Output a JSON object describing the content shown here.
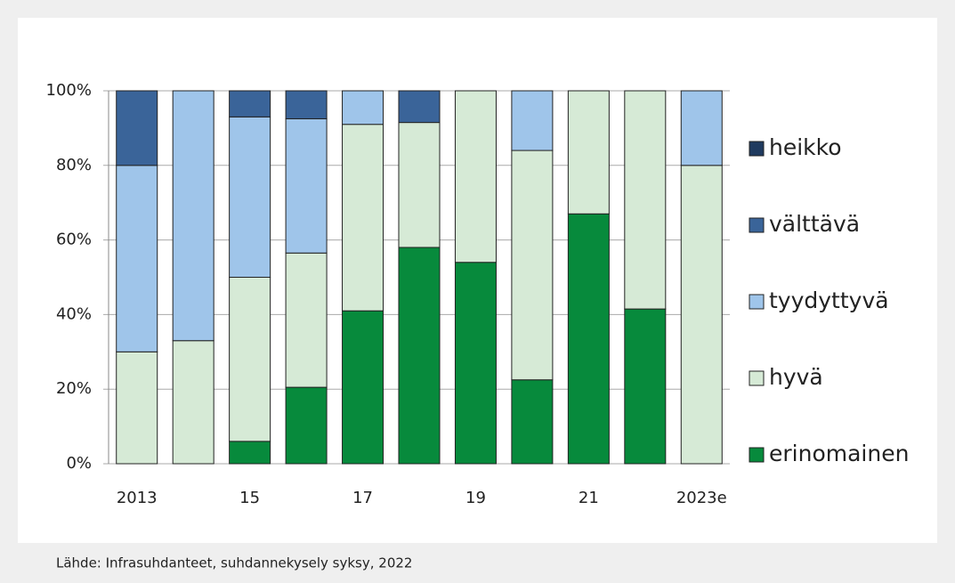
{
  "chart_data": {
    "type": "stacked_bar",
    "categories": [
      "2013",
      null,
      "15",
      null,
      "17",
      null,
      "19",
      null,
      "21",
      null,
      "2023e"
    ],
    "series": [
      {
        "name": "erinomainen",
        "color": "#078a3c",
        "values": [
          0,
          0,
          6,
          20.5,
          41,
          58,
          54,
          22.5,
          67,
          41.5,
          0
        ]
      },
      {
        "name": "hyvä",
        "color": "#d6ead6",
        "values": [
          30,
          33,
          44,
          36,
          50,
          33.5,
          46,
          61.5,
          33,
          58.5,
          80
        ]
      },
      {
        "name": "tyydyttyvä",
        "color": "#9fc5ea",
        "values": [
          50,
          67,
          43,
          36,
          9,
          0,
          0,
          16,
          0,
          0,
          20
        ]
      },
      {
        "name": "välttävä",
        "color": "#3a6499",
        "values": [
          20,
          0,
          7,
          7.5,
          0,
          8.5,
          0,
          0,
          0,
          0,
          0
        ]
      },
      {
        "name": "heikko",
        "color": "#1f3a5f",
        "values": [
          0,
          0,
          0,
          0,
          0,
          0,
          0,
          0,
          0,
          0,
          0
        ]
      }
    ],
    "ylim": [
      0,
      100
    ],
    "yticks": [
      {
        "value": 0,
        "label": "0%"
      },
      {
        "value": 20,
        "label": "20%"
      },
      {
        "value": 40,
        "label": "40%"
      },
      {
        "value": 60,
        "label": "60%"
      },
      {
        "value": 80,
        "label": "80%"
      },
      {
        "value": 100,
        "label": "100%"
      }
    ],
    "grid": true,
    "legend": "right",
    "source": "Lähde: Infrasuhdanteet, suhdannekysely syksy, 2022"
  }
}
